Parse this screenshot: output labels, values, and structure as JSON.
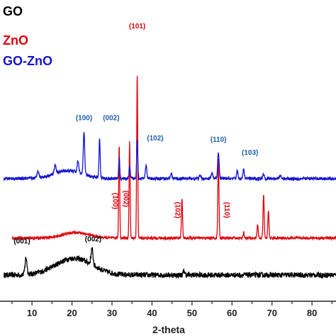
{
  "chart_data": {
    "type": "line",
    "xlabel": "2-theta",
    "ylabel": "",
    "xlim": [
      2,
      86
    ],
    "x_ticks": [
      10,
      20,
      30,
      40,
      50,
      60,
      70,
      80
    ],
    "x_tick_labels": [
      "10",
      "20",
      "30",
      "40",
      "50",
      "60",
      "70",
      "80"
    ],
    "legend": {
      "placement": "top-left",
      "entries": [
        {
          "label": "GO",
          "color": "#000000"
        },
        {
          "label": "ZnO",
          "color": "#e0000a"
        },
        {
          "label": "GO-ZnO",
          "color": "#1414d2"
        }
      ]
    },
    "series": [
      {
        "name": "GO",
        "color": "#000000",
        "x_start": 3,
        "x_end": 86,
        "baseline": 0.0,
        "noise": 0.012,
        "humps": [
          {
            "center": 20.5,
            "width": 6.5,
            "height": 0.075
          }
        ],
        "peaks": [
          {
            "x": 8.5,
            "height": 0.075,
            "width": 0.35
          },
          {
            "x": 25.0,
            "height": 0.07,
            "width": 0.35
          },
          {
            "x": 48.0,
            "height": 0.018,
            "width": 0.3
          }
        ]
      },
      {
        "name": "ZnO",
        "color": "#e0000a",
        "x_start": 5,
        "x_end": 86,
        "baseline": 0.165,
        "noise": 0.006,
        "humps": [
          {
            "center": 21.0,
            "width": 4.5,
            "height": 0.025
          }
        ],
        "peaks": [
          {
            "x": 31.8,
            "height": 0.415,
            "width": 0.18
          },
          {
            "x": 34.4,
            "height": 0.43,
            "width": 0.18
          },
          {
            "x": 36.3,
            "height": 0.73,
            "width": 0.18
          },
          {
            "x": 47.5,
            "height": 0.175,
            "width": 0.2
          },
          {
            "x": 56.6,
            "height": 0.355,
            "width": 0.2
          },
          {
            "x": 62.9,
            "height": 0.025,
            "width": 0.2
          },
          {
            "x": 66.4,
            "height": 0.06,
            "width": 0.2
          },
          {
            "x": 67.9,
            "height": 0.19,
            "width": 0.2
          },
          {
            "x": 69.1,
            "height": 0.12,
            "width": 0.2
          }
        ]
      },
      {
        "name": "GO-ZnO",
        "color": "#1414d2",
        "x_start": 3,
        "x_end": 86,
        "baseline": 0.43,
        "noise": 0.007,
        "humps": [
          {
            "center": 19.0,
            "width": 5.0,
            "height": 0.035
          }
        ],
        "peaks": [
          {
            "x": 11.5,
            "height": 0.035,
            "width": 0.3
          },
          {
            "x": 15.8,
            "height": 0.04,
            "width": 0.3
          },
          {
            "x": 21.5,
            "height": 0.05,
            "width": 0.3
          },
          {
            "x": 23.0,
            "height": 0.19,
            "width": 0.25
          },
          {
            "x": 26.9,
            "height": 0.18,
            "width": 0.2
          },
          {
            "x": 31.8,
            "height": 0.09,
            "width": 0.2
          },
          {
            "x": 34.4,
            "height": 0.055,
            "width": 0.2
          },
          {
            "x": 36.3,
            "height": 0.175,
            "width": 0.2
          },
          {
            "x": 38.5,
            "height": 0.06,
            "width": 0.25
          },
          {
            "x": 44.8,
            "height": 0.02,
            "width": 0.3
          },
          {
            "x": 52.0,
            "height": 0.012,
            "width": 0.3
          },
          {
            "x": 55.0,
            "height": 0.022,
            "width": 0.3
          },
          {
            "x": 56.6,
            "height": 0.12,
            "width": 0.25
          },
          {
            "x": 61.3,
            "height": 0.035,
            "width": 0.25
          },
          {
            "x": 62.9,
            "height": 0.04,
            "width": 0.25
          },
          {
            "x": 67.9,
            "height": 0.02,
            "width": 0.3
          },
          {
            "x": 72.0,
            "height": 0.012,
            "width": 0.3
          }
        ]
      }
    ],
    "annotations": [
      {
        "text": "(101)",
        "color": "#e0000a",
        "x": 36.3,
        "y": 1.1,
        "rotate": false
      },
      {
        "text": "(100)",
        "color": "#1c5fa8",
        "x": 23.0,
        "y": 0.69,
        "rotate": false
      },
      {
        "text": "(002)",
        "color": "#1c5fa8",
        "x": 29.8,
        "y": 0.69,
        "rotate": false
      },
      {
        "text": "(102)",
        "color": "#1c5fa8",
        "x": 40.8,
        "y": 0.6,
        "rotate": false
      },
      {
        "text": "(110)",
        "color": "#1c5fa8",
        "x": 56.6,
        "y": 0.595,
        "rotate": false
      },
      {
        "text": "(103)",
        "color": "#1c5fa8",
        "x": 64.5,
        "y": 0.535,
        "rotate": false
      },
      {
        "text": "(100)",
        "color": "#e0000a",
        "x": 30.3,
        "y": 0.33,
        "rotate": true
      },
      {
        "text": "(002)",
        "color": "#e0000a",
        "x": 32.9,
        "y": 0.34,
        "rotate": true
      },
      {
        "text": "(102)",
        "color": "#e0000a",
        "x": 45.9,
        "y": 0.29,
        "rotate": true
      },
      {
        "text": "(110)",
        "color": "#e0000a",
        "x": 58.2,
        "y": 0.29,
        "rotate": true
      },
      {
        "text": "(001)",
        "color": "#000000",
        "x": 7.5,
        "y": 0.14,
        "rotate": false
      },
      {
        "text": "(002)",
        "color": "#000000",
        "x": 25.3,
        "y": 0.15,
        "rotate": false
      }
    ]
  }
}
